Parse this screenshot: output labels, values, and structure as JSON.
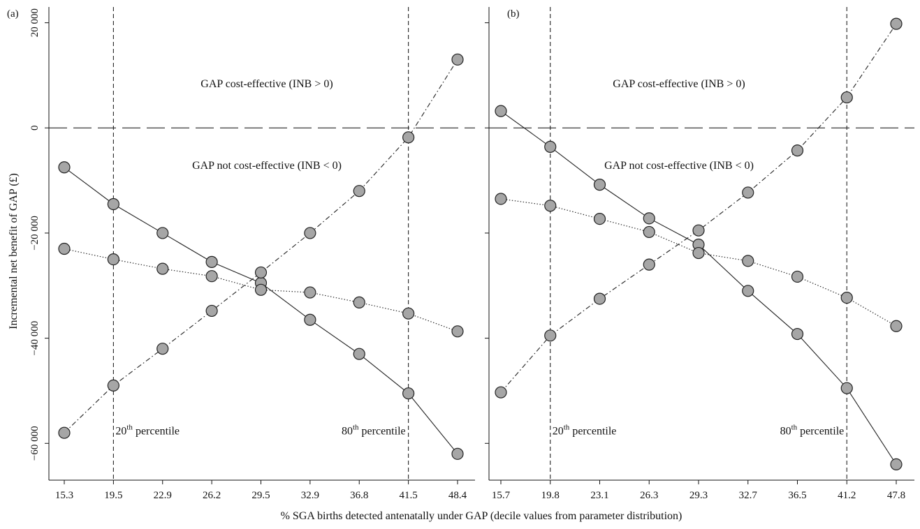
{
  "chart_data": {
    "type": "line",
    "xlabel": "% SGA births detected antenatally under GAP (decile values from parameter distribution)",
    "ylabel": "Incremental net benefit of GAP (£)",
    "ylim": [
      -67000,
      23000
    ],
    "yticks": [
      20000,
      0,
      -20000,
      -40000,
      -60000
    ],
    "ytick_labels": [
      "20 000",
      "0",
      "−20 000",
      "−40 000",
      "−60 000"
    ],
    "colors": {
      "marker_fill": "#a6a6a6",
      "marker_stroke": "#222222",
      "line": "#222222"
    },
    "panels": [
      {
        "label": "(a)",
        "x": [
          15.3,
          19.5,
          22.9,
          26.2,
          29.5,
          32.9,
          36.8,
          41.5,
          48.4
        ],
        "x_tick_labels": [
          "15.3",
          "19.5",
          "22.9",
          "26.2",
          "29.5",
          "32.9",
          "36.8",
          "41.5",
          "48.4"
        ],
        "series": [
          {
            "style": "solid",
            "values": [
              -7500,
              -14500,
              -20000,
              -25500,
              -29500,
              -36500,
              -43000,
              -50500,
              -62000
            ]
          },
          {
            "style": "dotted",
            "values": [
              -23000,
              -25000,
              -26800,
              -28200,
              -30800,
              -31300,
              -33200,
              -35300,
              -38700
            ]
          },
          {
            "style": "dashdot",
            "values": [
              -58000,
              -49000,
              -42000,
              -34800,
              -27500,
              -20000,
              -12000,
              -1800,
              13000
            ]
          }
        ],
        "vlines": [
          {
            "x": 19.5,
            "label": "20",
            "sup": "th",
            "rest": " percentile"
          },
          {
            "x": 41.5,
            "label": "80",
            "sup": "th",
            "rest": " percentile"
          }
        ],
        "annotations": {
          "above": "GAP cost-effective (INB > 0)",
          "below": "GAP not cost-effective (INB < 0)"
        }
      },
      {
        "label": "(b)",
        "x": [
          15.7,
          19.8,
          23.1,
          26.3,
          29.3,
          32.7,
          36.5,
          41.2,
          47.8
        ],
        "x_tick_labels": [
          "15.7",
          "19.8",
          "23.1",
          "26.3",
          "29.3",
          "32.7",
          "36.5",
          "41.2",
          "47.8"
        ],
        "series": [
          {
            "style": "solid",
            "values": [
              3200,
              -3600,
              -10800,
              -17200,
              -22200,
              -31000,
              -39200,
              -49500,
              -64000
            ]
          },
          {
            "style": "dotted",
            "values": [
              -13500,
              -14800,
              -17300,
              -19800,
              -23800,
              -25300,
              -28300,
              -32300,
              -37700
            ]
          },
          {
            "style": "dashdot",
            "values": [
              -50300,
              -39500,
              -32500,
              -26000,
              -19500,
              -12300,
              -4300,
              5800,
              19800
            ]
          }
        ],
        "vlines": [
          {
            "x": 19.8,
            "label": "20",
            "sup": "th",
            "rest": " percentile"
          },
          {
            "x": 41.2,
            "label": "80",
            "sup": "th",
            "rest": " percentile"
          }
        ],
        "annotations": {
          "above": "GAP cost-effective (INB > 0)",
          "below": "GAP not cost-effective (INB < 0)"
        }
      }
    ]
  }
}
